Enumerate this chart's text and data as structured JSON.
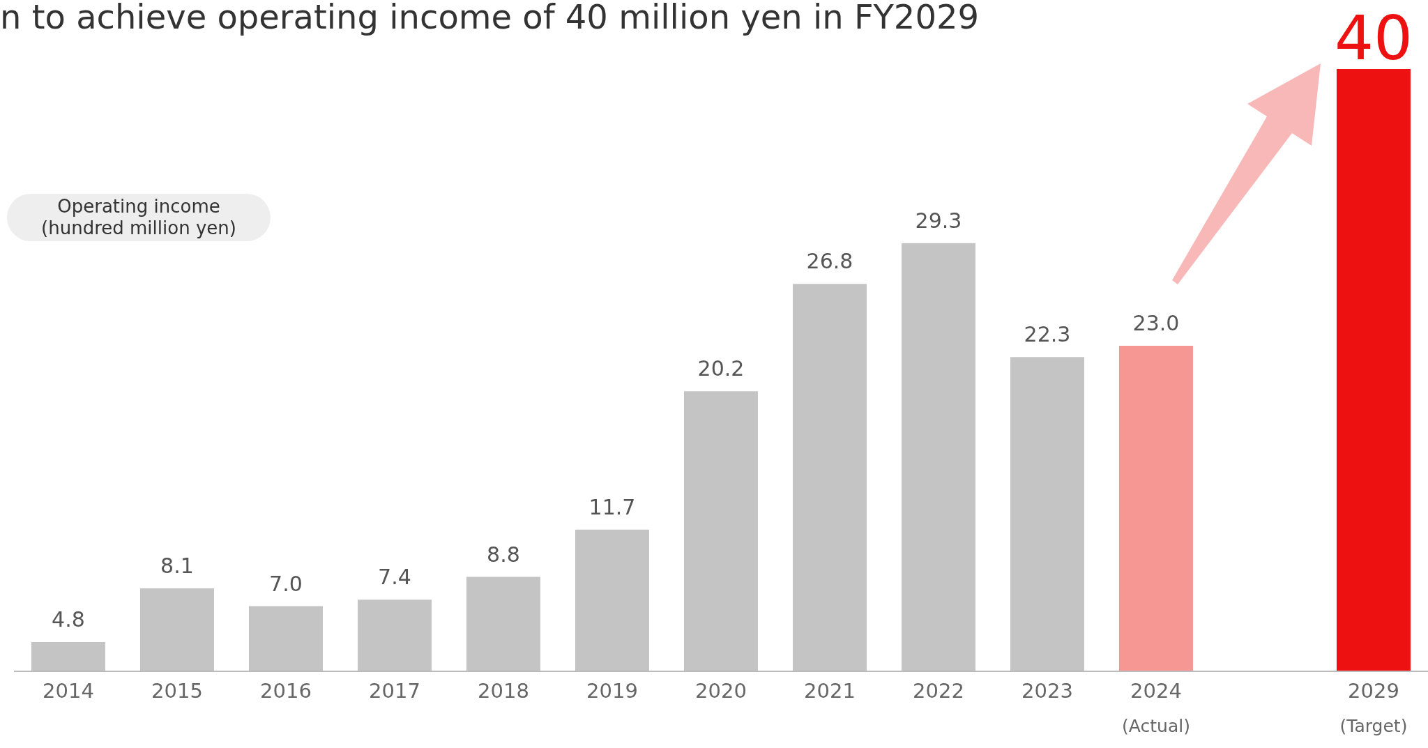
{
  "chart_data": {
    "type": "bar",
    "title": "n to achieve operating income of 40 million yen in FY2029",
    "ylabel": "Operating income\n(hundred million yen)",
    "categories": [
      "2014",
      "2015",
      "2016",
      "2017",
      "2018",
      "2019",
      "2020",
      "2021",
      "2022",
      "2023",
      "2024$_{(Actual)}$",
      null,
      "2029$_{(Target)}$"
    ],
    "values": [
      4.8,
      8.1,
      7.0,
      7.4,
      8.8,
      11.7,
      20.2,
      26.8,
      29.3,
      22.3,
      23.0,
      null,
      40
    ],
    "colors": [
      "#c4c4c4",
      "#c4c4c4",
      "#c4c4c4",
      "#c4c4c4",
      "#c4c4c4",
      "#c4c4c4",
      "#c4c4c4",
      "#c4c4c4",
      "#c4c4c4",
      "#c4c4c4",
      "#f79794",
      "#c4c4c4",
      "#ee1111"
    ],
    "value_labels": [
      "4.8",
      "8.1",
      "7.0",
      "7.4",
      "8.8",
      "11.7",
      "20.2",
      "26.8",
      "29.3",
      "22.3",
      "23.0",
      null,
      "40"
    ],
    "ylim": [
      3,
      40
    ]
  }
}
